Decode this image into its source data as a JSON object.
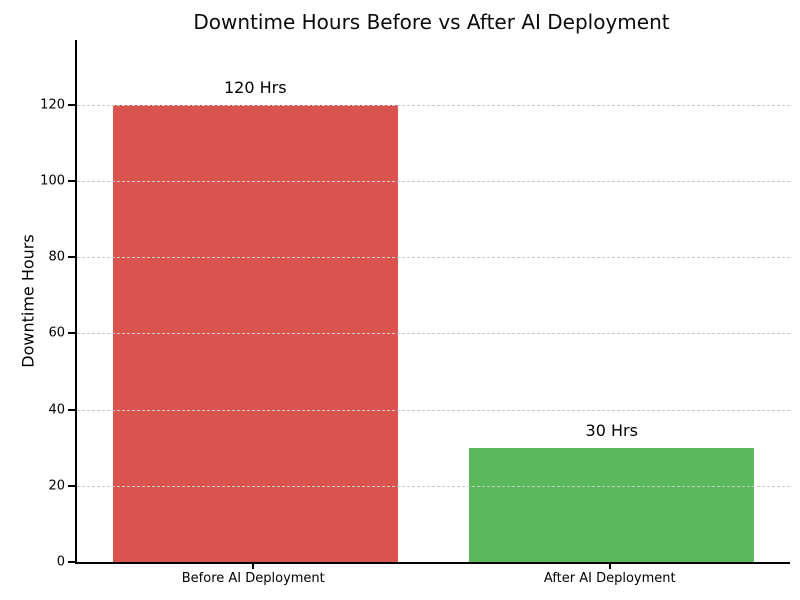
{
  "chart_data": {
    "type": "bar",
    "title": "Downtime Hours Before vs After AI Deployment",
    "categories": [
      "Before AI Deployment",
      "After AI Deployment"
    ],
    "values": [
      120,
      30
    ],
    "bar_labels": [
      "120 Hrs",
      "30 Hrs"
    ],
    "bar_colors": [
      "#d9534f",
      "#5cb85c"
    ],
    "xlabel": "",
    "ylabel": "Downtime Hours",
    "yticks": [
      0,
      20,
      40,
      60,
      80,
      100,
      120
    ],
    "ylim": [
      0,
      137
    ],
    "grid": "horizontal-dashed",
    "grid_color": "#c9c9c9",
    "legend": "none",
    "bar_width_fraction": 0.8
  }
}
